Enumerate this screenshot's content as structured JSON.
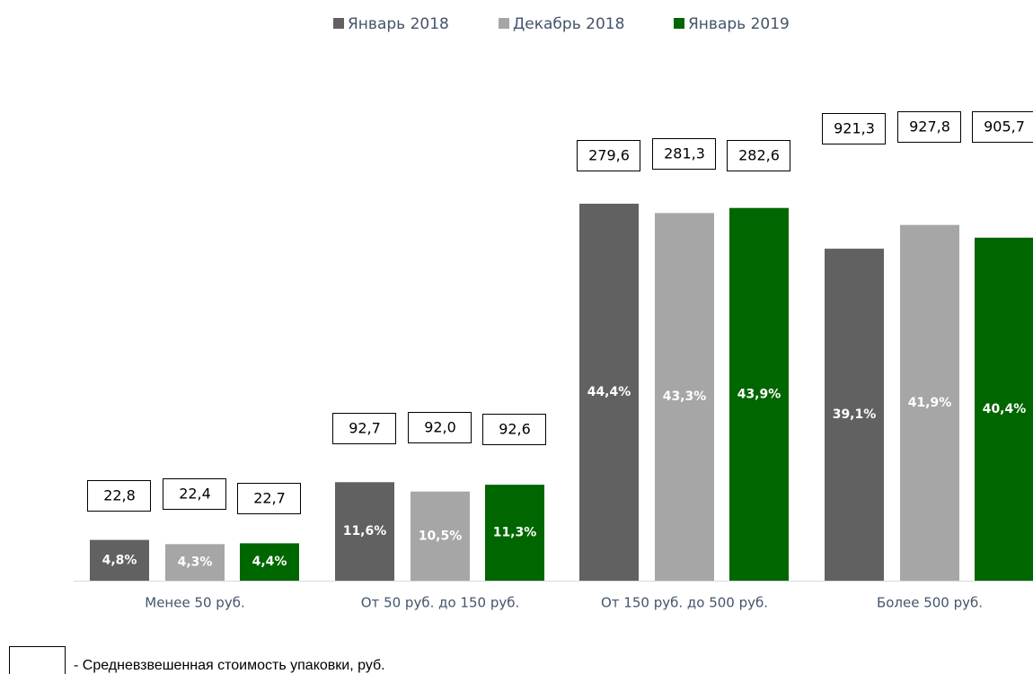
{
  "chart_data": {
    "type": "bar",
    "categories": [
      "Менее 50 руб.",
      "От 50 руб. до 150 руб.",
      "От 150 руб. до 500 руб.",
      "Более 500 руб."
    ],
    "series": [
      {
        "name": "Январь 2018",
        "color": "#616161",
        "values": [
          4.8,
          11.6,
          44.4,
          39.1
        ],
        "value_labels": [
          "4,8%",
          "11,6%",
          "44,4%",
          "39,1%"
        ],
        "prices": [
          22.8,
          92.7,
          279.6,
          921.3
        ],
        "price_labels": [
          "22,8",
          "92,7",
          "279,6",
          "921,3"
        ]
      },
      {
        "name": "Декабрь 2018",
        "color": "#a6a6a6",
        "values": [
          4.3,
          10.5,
          43.3,
          41.9
        ],
        "value_labels": [
          "4,3%",
          "10,5%",
          "43,3%",
          "41,9%"
        ],
        "prices": [
          22.4,
          92.0,
          281.3,
          927.8
        ],
        "price_labels": [
          "22,4",
          "92,0",
          "281,3",
          "927,8"
        ]
      },
      {
        "name": "Январь 2019",
        "color": "#006600",
        "values": [
          4.4,
          11.3,
          43.9,
          40.4
        ],
        "value_labels": [
          "4,4%",
          "11,3%",
          "43,9%",
          "40,4%"
        ],
        "prices": [
          22.7,
          92.6,
          282.6,
          905.7
        ],
        "price_labels": [
          "22,7",
          "92,6",
          "282,6",
          "905,7"
        ]
      }
    ],
    "legend_note": "- Средневзвешенная стоимость упаковки, руб."
  }
}
